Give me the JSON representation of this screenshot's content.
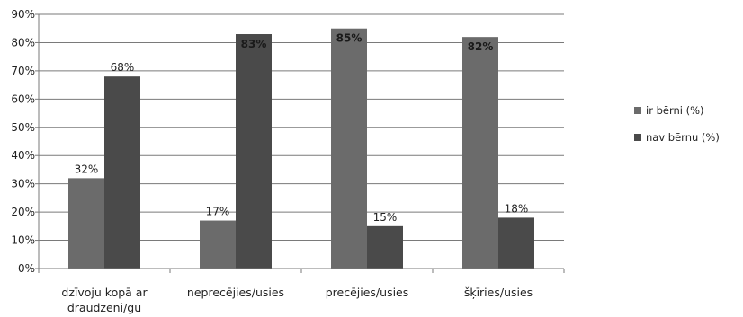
{
  "chart_data": {
    "type": "bar",
    "categories": [
      [
        "dzīvoju kopā ar",
        "draudzeni/gu"
      ],
      [
        "neprecējies/usies"
      ],
      [
        "precējies/usies"
      ],
      [
        "šķīries/usies"
      ]
    ],
    "series": [
      {
        "name": "ir bērni (%)",
        "color": "#6b6b6b",
        "values": [
          32,
          17,
          85,
          82
        ],
        "labels": [
          "32%",
          "17%",
          "85%",
          "82%"
        ]
      },
      {
        "name": "nav bērnu (%)",
        "color": "#4a4a4a",
        "values": [
          68,
          83,
          15,
          18
        ],
        "labels": [
          "68%",
          "83%",
          "15%",
          "18%"
        ]
      }
    ],
    "y_ticks": [
      "0%",
      "10%",
      "20%",
      "30%",
      "40%",
      "50%",
      "60%",
      "70%",
      "80%",
      "90%"
    ],
    "ylim": [
      0,
      90
    ],
    "ystep": 10,
    "grid": true,
    "legend_position": "right"
  }
}
